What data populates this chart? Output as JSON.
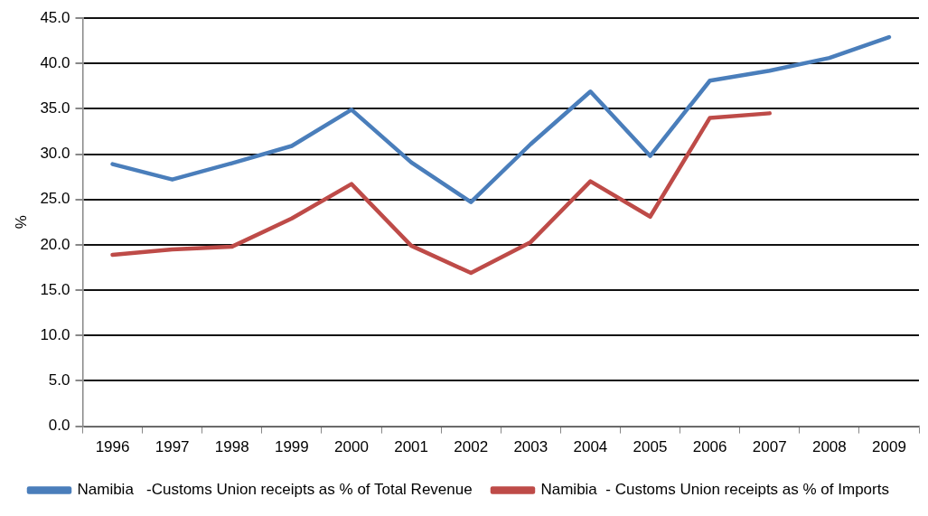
{
  "chart_data": {
    "type": "line",
    "ylabel": "%",
    "categories": [
      "1996",
      "1997",
      "1998",
      "1999",
      "2000",
      "2001",
      "2002",
      "2003",
      "2004",
      "2005",
      "2006",
      "2007",
      "2008",
      "2009"
    ],
    "series": [
      {
        "name": "Namibia   -Customs Union receipts as % of Total Revenue",
        "color": "#4a7ebb",
        "values": [
          28.9,
          27.2,
          29.0,
          30.9,
          34.9,
          29.1,
          24.7,
          31.1,
          36.9,
          29.8,
          38.1,
          39.2,
          40.6,
          42.9
        ]
      },
      {
        "name": "Namibia  - Customs Union receipts as % of Imports",
        "color": "#be4b48",
        "values": [
          18.9,
          19.5,
          19.8,
          22.9,
          26.7,
          19.9,
          16.9,
          20.3,
          27.0,
          23.1,
          34.0,
          34.5,
          null,
          null
        ]
      }
    ],
    "ylim": [
      0,
      45
    ],
    "yticks": [
      {
        "value": 0,
        "label": "0.0"
      },
      {
        "value": 5,
        "label": "5.0"
      },
      {
        "value": 10,
        "label": "10.0"
      },
      {
        "value": 15,
        "label": "15.0"
      },
      {
        "value": 20,
        "label": "20.0"
      },
      {
        "value": 25,
        "label": "25.0"
      },
      {
        "value": 30,
        "label": "30.0"
      },
      {
        "value": 35,
        "label": "35.0"
      },
      {
        "value": 40,
        "label": "40.0"
      },
      {
        "value": 45,
        "label": "45.0"
      }
    ],
    "grid": "y",
    "legend": "bottom",
    "marker": "none",
    "line_style": "solid"
  }
}
